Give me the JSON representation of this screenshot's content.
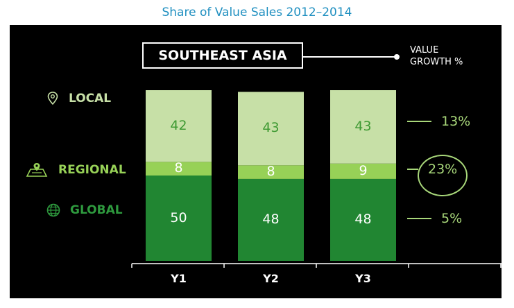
{
  "title": "Share of Value Sales 2012–2014",
  "chart_data": {
    "type": "bar",
    "stacked": true,
    "title": "Share of Value Sales 2012–2014",
    "subtitle": "SOUTHEAST ASIA",
    "categories": [
      "Y1",
      "Y2",
      "Y3"
    ],
    "series": [
      {
        "name": "GLOBAL",
        "values": [
          50,
          48,
          48
        ],
        "color": "#218632",
        "label_color": "#ffffff"
      },
      {
        "name": "REGIONAL",
        "values": [
          8,
          8,
          9
        ],
        "color": "#97d157",
        "label_color": "#ffffff"
      },
      {
        "name": "LOCAL",
        "values": [
          42,
          43,
          43
        ],
        "color": "#c7e0a7",
        "label_color": "#3f9a33"
      }
    ],
    "ylim": [
      0,
      100
    ],
    "xlabel": "",
    "ylabel": "",
    "grid": false,
    "value_growth": {
      "label": "VALUE GROWTH %",
      "LOCAL": "13%",
      "REGIONAL": "23%",
      "GLOBAL": "5%"
    }
  },
  "colors": {
    "title": "#1f8fc0",
    "background": "#000000",
    "growth": "#a8d77a"
  },
  "icons": {
    "local": "location-pin-icon",
    "regional": "map-icon",
    "global": "globe-icon"
  }
}
